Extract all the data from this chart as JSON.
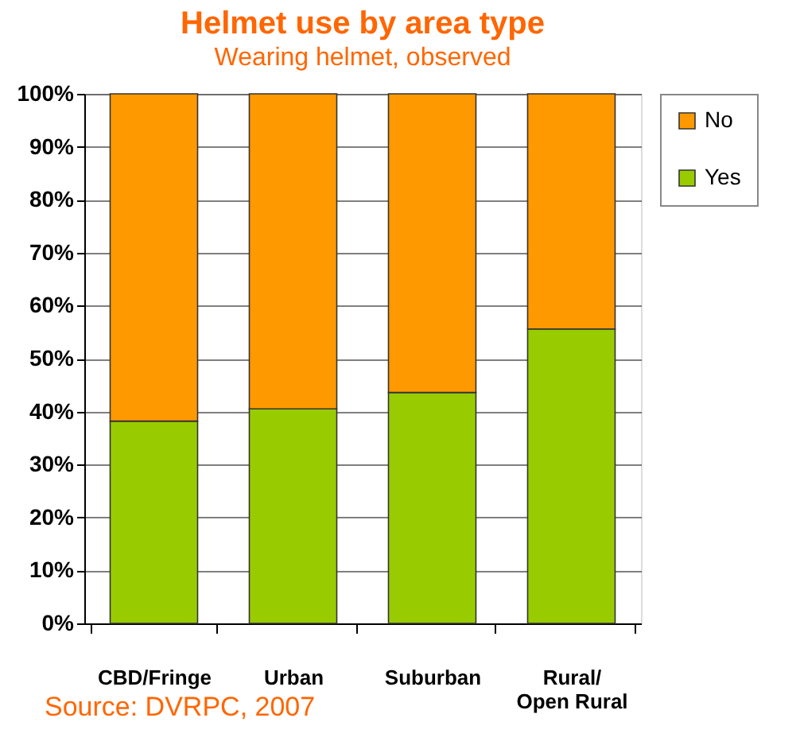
{
  "chart_data": {
    "type": "bar",
    "title": "Helmet use by area type",
    "subtitle": "Wearing helmet, observed",
    "categories": [
      "CBD/Fringe",
      "Urban",
      "Suburban",
      "Rural/\nOpen Rural"
    ],
    "stacked": true,
    "series": [
      {
        "name": "Yes",
        "color": "#99cc00",
        "values": [
          38.2,
          40.5,
          43.6,
          55.6
        ]
      },
      {
        "name": "No",
        "color": "#ff9900",
        "values": [
          61.8,
          59.5,
          56.4,
          44.4
        ]
      }
    ],
    "ylim": [
      0,
      100
    ],
    "yticks": [
      {
        "value": 0,
        "label": "0%"
      },
      {
        "value": 10,
        "label": "10%"
      },
      {
        "value": 20,
        "label": "20%"
      },
      {
        "value": 30,
        "label": "30%"
      },
      {
        "value": 40,
        "label": "40%"
      },
      {
        "value": 50,
        "label": "50%"
      },
      {
        "value": 60,
        "label": "60%"
      },
      {
        "value": 70,
        "label": "70%"
      },
      {
        "value": 80,
        "label": "80%"
      },
      {
        "value": 90,
        "label": "90%"
      },
      {
        "value": 100,
        "label": "100%"
      }
    ],
    "grid": "y",
    "legend": "right",
    "annotations": [
      "Source:  DVRPC, 2007"
    ]
  }
}
